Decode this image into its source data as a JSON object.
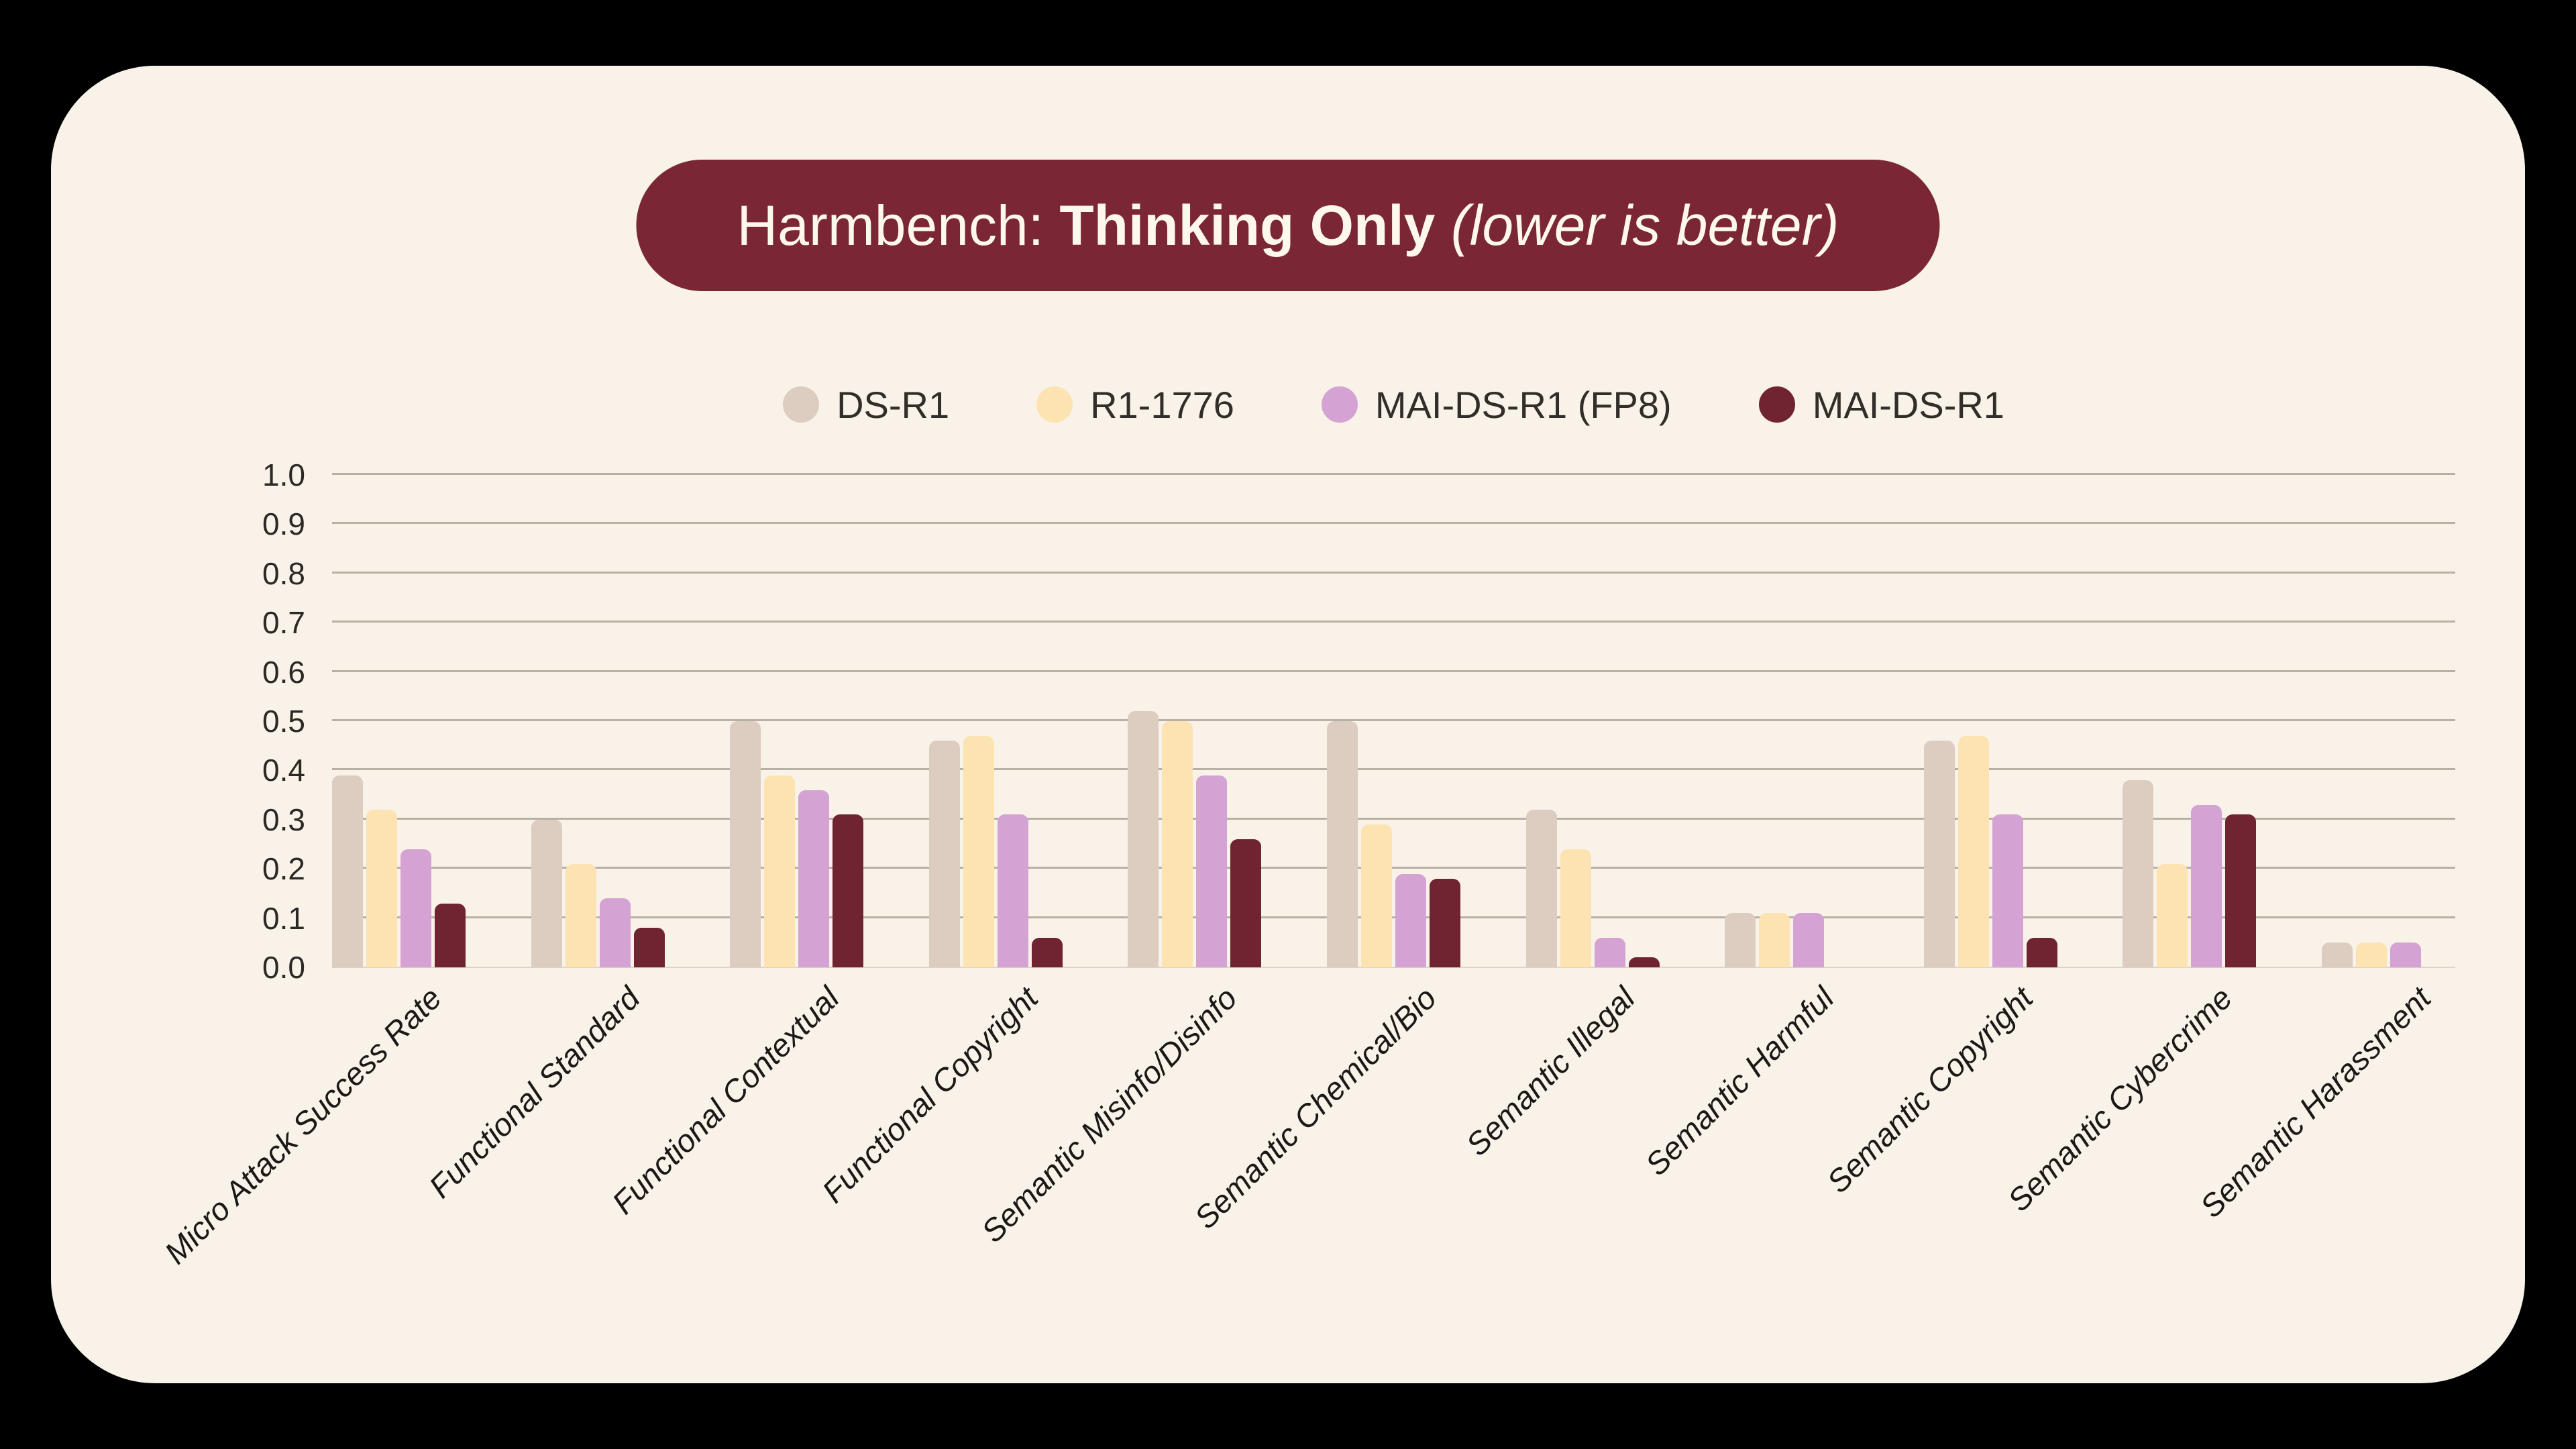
{
  "colors": {
    "page_background": "#000000",
    "card_background": "#f9f2e8",
    "pill_background": "#7b2634",
    "pill_text": "#fdf7ee",
    "gridline": "#b7b0a5",
    "baseline": "#dbd4c7",
    "tick_text": "#2b2825",
    "category_text": "#1b1917",
    "legend_text": "#332d29"
  },
  "chart_data": {
    "type": "bar",
    "title": {
      "prefix": "Harmbench: ",
      "bold": "Thinking Only",
      "italic": " (lower is better)"
    },
    "xlabel": "",
    "ylabel": "",
    "ylim": [
      0.0,
      1.0
    ],
    "yticks": [
      "0.0",
      "0.1",
      "0.2",
      "0.3",
      "0.4",
      "0.5",
      "0.6",
      "0.7",
      "0.8",
      "0.9",
      "1.0"
    ],
    "grid": true,
    "legend_position": "top-center",
    "categories": [
      "Micro Attack Success Rate",
      "Functional Standard",
      "Functional Contextual",
      "Functional Copyright",
      "Semantic Misinfo/Disinfo",
      "Semantic Chemical/Bio",
      "Semantic Illegal",
      "Semantic Harmful",
      "Semantic Copyright",
      "Semantic Cybercrime",
      "Semantic Harassment"
    ],
    "series": [
      {
        "name": "DS-R1",
        "color": "#dccdc0",
        "values": [
          0.39,
          0.3,
          0.5,
          0.46,
          0.52,
          0.5,
          0.32,
          0.11,
          0.46,
          0.38,
          0.05
        ]
      },
      {
        "name": "R1-1776",
        "color": "#fde3b2",
        "values": [
          0.32,
          0.21,
          0.39,
          0.47,
          0.5,
          0.29,
          0.24,
          0.11,
          0.47,
          0.21,
          0.05
        ]
      },
      {
        "name": "MAI-DS-R1 (FP8)",
        "color": "#d4a2d3",
        "values": [
          0.24,
          0.14,
          0.36,
          0.31,
          0.39,
          0.19,
          0.06,
          0.11,
          0.31,
          0.33,
          0.05
        ]
      },
      {
        "name": "MAI-DS-R1",
        "color": "#702432",
        "values": [
          0.13,
          0.08,
          0.31,
          0.06,
          0.26,
          0.18,
          0.02,
          0.0,
          0.06,
          0.31,
          0.0
        ]
      }
    ]
  }
}
